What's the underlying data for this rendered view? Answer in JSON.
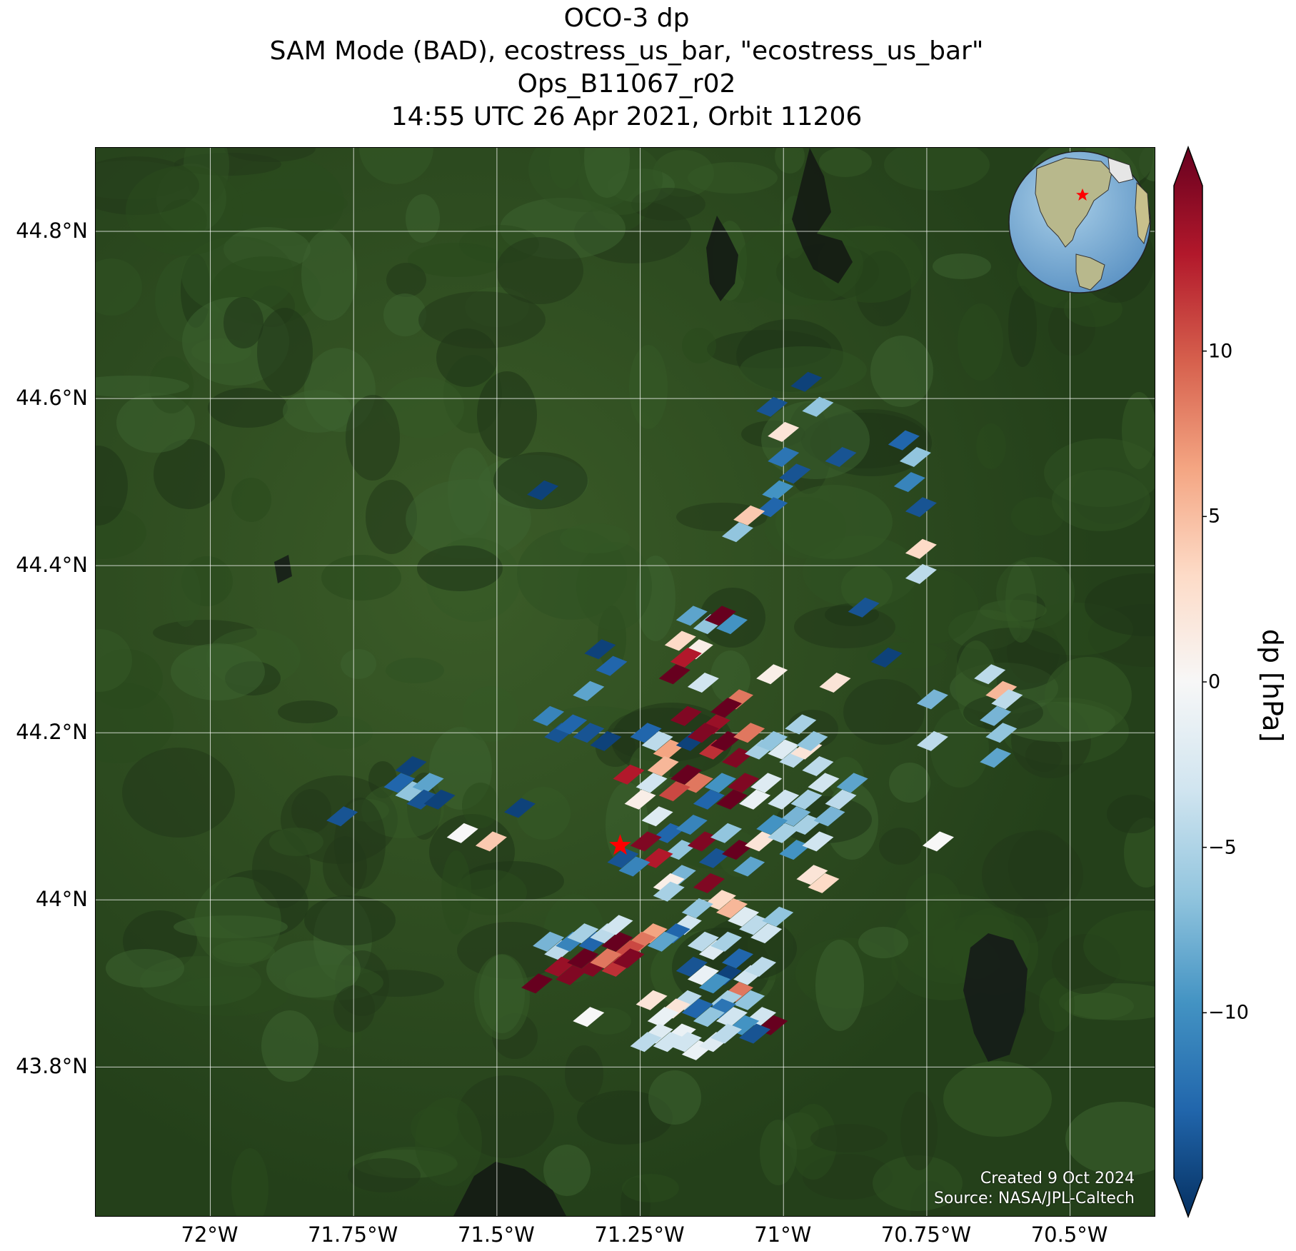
{
  "title": {
    "line1": "OCO-3 dp",
    "line2": "SAM Mode (BAD), ecostress_us_bar, \"ecostress_us_bar\"",
    "line3": "Ops_B11067_r02",
    "line4": "14:55 UTC 26 Apr 2021, Orbit 11206"
  },
  "map": {
    "lon_range": [
      -72.2,
      -70.35
    ],
    "lat_range": [
      43.62,
      44.9
    ],
    "x_ticks": [
      {
        "value": -72.0,
        "label": "72°W"
      },
      {
        "value": -71.75,
        "label": "71.75°W"
      },
      {
        "value": -71.5,
        "label": "71.5°W"
      },
      {
        "value": -71.25,
        "label": "71.25°W"
      },
      {
        "value": -71.0,
        "label": "71°W"
      },
      {
        "value": -70.75,
        "label": "70.75°W"
      },
      {
        "value": -70.5,
        "label": "70.5°W"
      }
    ],
    "y_ticks": [
      {
        "value": 44.8,
        "label": "44.8°N"
      },
      {
        "value": 44.6,
        "label": "44.6°N"
      },
      {
        "value": 44.4,
        "label": "44.4°N"
      },
      {
        "value": 44.2,
        "label": "44.2°N"
      },
      {
        "value": 44.0,
        "label": "44°N"
      },
      {
        "value": 43.8,
        "label": "43.8°N"
      }
    ],
    "target_marker": {
      "lon": -71.285,
      "lat": 44.065,
      "color": "#ff0000"
    },
    "background_color": "#2e4a20",
    "credit_line1": "Created 9 Oct 2024",
    "credit_line2": "Source: NASA/JPL-Caltech"
  },
  "colorbar": {
    "title": "dp [hPa]",
    "range": [
      -15,
      15
    ],
    "ticks": [
      {
        "value": 10,
        "label": "10"
      },
      {
        "value": 5,
        "label": "5"
      },
      {
        "value": 0,
        "label": "0"
      },
      {
        "value": -5,
        "label": "−5"
      },
      {
        "value": -10,
        "label": "−10"
      }
    ],
    "colors": [
      "#053061",
      "#2166ac",
      "#4393c3",
      "#92c5de",
      "#d1e5f0",
      "#f7f7f7",
      "#fddbc7",
      "#f4a582",
      "#d6604d",
      "#b2182b",
      "#67001f"
    ]
  },
  "inset_globe": {
    "marker_color": "#ff0000"
  },
  "chart_data": {
    "type": "heatmap",
    "variable": "dp",
    "units": "hPa",
    "points": [
      [
        -70.96,
        44.62,
        -14
      ],
      [
        -70.94,
        44.59,
        -6
      ],
      [
        -71.02,
        44.59,
        -13
      ],
      [
        -71.0,
        44.56,
        2
      ],
      [
        -71.0,
        44.53,
        -11
      ],
      [
        -70.98,
        44.51,
        -13
      ],
      [
        -71.01,
        44.49,
        -9
      ],
      [
        -71.02,
        44.47,
        -12
      ],
      [
        -70.9,
        44.53,
        -13
      ],
      [
        -70.79,
        44.55,
        -12
      ],
      [
        -70.77,
        44.53,
        -6
      ],
      [
        -70.78,
        44.5,
        -10
      ],
      [
        -70.76,
        44.47,
        -13
      ],
      [
        -71.42,
        44.49,
        -14
      ],
      [
        -71.06,
        44.46,
        4
      ],
      [
        -71.08,
        44.44,
        -6
      ],
      [
        -70.76,
        44.42,
        3
      ],
      [
        -70.76,
        44.39,
        -4
      ],
      [
        -70.86,
        44.35,
        -13
      ],
      [
        -70.82,
        44.29,
        -14
      ],
      [
        -70.91,
        44.26,
        2
      ],
      [
        -70.64,
        44.27,
        -4
      ],
      [
        -70.62,
        44.25,
        5
      ],
      [
        -71.32,
        44.3,
        -14
      ],
      [
        -71.3,
        44.28,
        -12
      ],
      [
        -71.34,
        44.25,
        -8
      ],
      [
        -71.16,
        44.34,
        -8
      ],
      [
        -71.13,
        44.33,
        -6
      ],
      [
        -71.11,
        44.34,
        15
      ],
      [
        -71.09,
        44.33,
        -9
      ],
      [
        -71.18,
        44.31,
        3
      ],
      [
        -71.15,
        44.3,
        1
      ],
      [
        -71.17,
        44.29,
        12
      ],
      [
        -71.19,
        44.27,
        15
      ],
      [
        -71.14,
        44.26,
        -3
      ],
      [
        -71.02,
        44.27,
        1
      ],
      [
        -71.08,
        44.24,
        8
      ],
      [
        -71.1,
        44.23,
        15
      ],
      [
        -71.12,
        44.21,
        13
      ],
      [
        -71.17,
        44.22,
        14
      ],
      [
        -71.24,
        44.2,
        -12
      ],
      [
        -71.22,
        44.19,
        -4
      ],
      [
        -71.2,
        44.18,
        6
      ],
      [
        -71.16,
        44.19,
        -14
      ],
      [
        -71.14,
        44.2,
        14
      ],
      [
        -71.12,
        44.18,
        11
      ],
      [
        -71.1,
        44.19,
        15
      ],
      [
        -71.08,
        44.17,
        14
      ],
      [
        -71.06,
        44.2,
        8
      ],
      [
        -71.04,
        44.18,
        -5
      ],
      [
        -71.02,
        44.19,
        -6
      ],
      [
        -71.0,
        44.18,
        -2
      ],
      [
        -70.98,
        44.17,
        -4
      ],
      [
        -70.96,
        44.18,
        2
      ],
      [
        -70.94,
        44.16,
        -4
      ],
      [
        -70.93,
        44.14,
        -3
      ],
      [
        -70.96,
        44.12,
        -5
      ],
      [
        -70.98,
        44.1,
        -7
      ],
      [
        -71.0,
        44.12,
        -3
      ],
      [
        -71.03,
        44.14,
        -2
      ],
      [
        -71.05,
        44.12,
        -1
      ],
      [
        -71.07,
        44.14,
        14
      ],
      [
        -71.09,
        44.12,
        15
      ],
      [
        -71.11,
        44.14,
        -9
      ],
      [
        -71.13,
        44.12,
        -12
      ],
      [
        -71.15,
        44.14,
        8
      ],
      [
        -71.17,
        44.15,
        15
      ],
      [
        -71.19,
        44.13,
        10
      ],
      [
        -71.21,
        44.16,
        5
      ],
      [
        -71.23,
        44.14,
        -3
      ],
      [
        -71.25,
        44.12,
        1
      ],
      [
        -71.27,
        44.15,
        12
      ],
      [
        -71.22,
        44.1,
        -2
      ],
      [
        -71.2,
        44.08,
        -12
      ],
      [
        -71.18,
        44.06,
        -6
      ],
      [
        -71.16,
        44.09,
        -10
      ],
      [
        -71.14,
        44.07,
        14
      ],
      [
        -71.12,
        44.05,
        -13
      ],
      [
        -71.1,
        44.08,
        -6
      ],
      [
        -71.08,
        44.06,
        15
      ],
      [
        -71.06,
        44.04,
        -8
      ],
      [
        -71.04,
        44.07,
        2
      ],
      [
        -71.02,
        44.09,
        -9
      ],
      [
        -71.0,
        44.08,
        -5
      ],
      [
        -70.98,
        44.06,
        -9
      ],
      [
        -70.96,
        44.09,
        -5
      ],
      [
        -70.94,
        44.07,
        -3
      ],
      [
        -70.92,
        44.1,
        -7
      ],
      [
        -70.9,
        44.12,
        -4
      ],
      [
        -70.88,
        44.14,
        -8
      ],
      [
        -71.24,
        44.07,
        14
      ],
      [
        -71.22,
        44.05,
        12
      ],
      [
        -71.26,
        44.04,
        -10
      ],
      [
        -71.28,
        44.05,
        -13
      ],
      [
        -71.18,
        44.03,
        -7
      ],
      [
        -71.2,
        44.02,
        1
      ],
      [
        -71.13,
        44.02,
        14
      ],
      [
        -71.11,
        44.0,
        3
      ],
      [
        -71.09,
        43.99,
        5
      ],
      [
        -71.07,
        43.98,
        -2
      ],
      [
        -71.05,
        43.97,
        -4
      ],
      [
        -71.03,
        43.96,
        -3
      ],
      [
        -71.01,
        43.98,
        -6
      ],
      [
        -71.15,
        43.99,
        -6
      ],
      [
        -71.17,
        43.97,
        -3
      ],
      [
        -71.19,
        43.96,
        -12
      ],
      [
        -71.21,
        43.95,
        -8
      ],
      [
        -71.23,
        43.96,
        6
      ],
      [
        -71.25,
        43.95,
        8
      ],
      [
        -71.27,
        43.94,
        10
      ],
      [
        -71.29,
        43.95,
        15
      ],
      [
        -71.14,
        43.95,
        -4
      ],
      [
        -71.12,
        43.94,
        -2
      ],
      [
        -71.1,
        43.95,
        -5
      ],
      [
        -71.08,
        43.93,
        -12
      ],
      [
        -71.1,
        43.91,
        -14
      ],
      [
        -71.12,
        43.9,
        -9
      ],
      [
        -71.14,
        43.91,
        -1
      ],
      [
        -71.16,
        43.92,
        -13
      ],
      [
        -71.06,
        43.91,
        -3
      ],
      [
        -71.04,
        43.92,
        -4
      ],
      [
        -71.08,
        43.89,
        8
      ],
      [
        -71.1,
        43.88,
        -5
      ],
      [
        -71.06,
        43.88,
        -6
      ],
      [
        -71.04,
        43.86,
        -3
      ],
      [
        -71.02,
        43.85,
        15
      ],
      [
        -71.05,
        43.84,
        -13
      ],
      [
        -71.07,
        43.85,
        -9
      ],
      [
        -71.09,
        43.86,
        -3
      ],
      [
        -71.11,
        43.87,
        -11
      ],
      [
        -71.13,
        43.86,
        -6
      ],
      [
        -71.15,
        43.87,
        -12
      ],
      [
        -71.17,
        43.88,
        -4
      ],
      [
        -71.19,
        43.87,
        2
      ],
      [
        -71.21,
        43.86,
        -1
      ],
      [
        -71.23,
        43.88,
        2
      ],
      [
        -71.18,
        43.84,
        -1
      ],
      [
        -71.2,
        43.83,
        -3
      ],
      [
        -71.22,
        43.84,
        -2
      ],
      [
        -71.24,
        43.83,
        -4
      ],
      [
        -71.15,
        43.82,
        -1
      ],
      [
        -71.17,
        43.83,
        -3
      ],
      [
        -71.12,
        43.83,
        -2
      ],
      [
        -71.1,
        43.84,
        -4
      ],
      [
        -71.41,
        43.95,
        -7
      ],
      [
        -71.39,
        43.94,
        -4
      ],
      [
        -71.37,
        43.95,
        -10
      ],
      [
        -71.35,
        43.96,
        -5
      ],
      [
        -71.33,
        43.95,
        -12
      ],
      [
        -71.31,
        43.96,
        -4
      ],
      [
        -71.29,
        43.97,
        -3
      ],
      [
        -71.39,
        43.92,
        13
      ],
      [
        -71.37,
        43.91,
        14
      ],
      [
        -71.35,
        43.93,
        15
      ],
      [
        -71.33,
        43.92,
        14
      ],
      [
        -71.31,
        43.93,
        8
      ],
      [
        -71.29,
        43.92,
        11
      ],
      [
        -71.27,
        43.93,
        14
      ],
      [
        -71.43,
        43.9,
        15
      ],
      [
        -71.34,
        43.86,
        0
      ],
      [
        -71.56,
        44.08,
        0
      ],
      [
        -71.51,
        44.07,
        4
      ],
      [
        -71.46,
        44.11,
        -14
      ],
      [
        -71.39,
        44.2,
        -13
      ],
      [
        -71.41,
        44.22,
        -10
      ],
      [
        -71.37,
        44.21,
        -12
      ],
      [
        -71.34,
        44.2,
        -13
      ],
      [
        -71.31,
        44.19,
        -14
      ],
      [
        -71.65,
        44.16,
        -14
      ],
      [
        -71.67,
        44.14,
        -12
      ],
      [
        -71.65,
        44.13,
        -6
      ],
      [
        -71.62,
        44.14,
        -8
      ],
      [
        -71.63,
        44.12,
        -13
      ],
      [
        -71.6,
        44.12,
        -14
      ],
      [
        -71.77,
        44.1,
        -13
      ],
      [
        -70.93,
        44.02,
        3
      ],
      [
        -70.95,
        44.03,
        2
      ],
      [
        -70.73,
        44.07,
        0
      ],
      [
        -70.74,
        44.19,
        -4
      ],
      [
        -70.74,
        44.24,
        -7
      ],
      [
        -70.62,
        44.2,
        -6
      ],
      [
        -70.63,
        44.22,
        -7
      ],
      [
        -70.61,
        44.24,
        -4
      ],
      [
        -70.63,
        44.17,
        -8
      ],
      [
        -70.95,
        44.19,
        -6
      ],
      [
        -70.97,
        44.21,
        -5
      ],
      [
        -71.2,
        44.01,
        -5
      ]
    ]
  }
}
